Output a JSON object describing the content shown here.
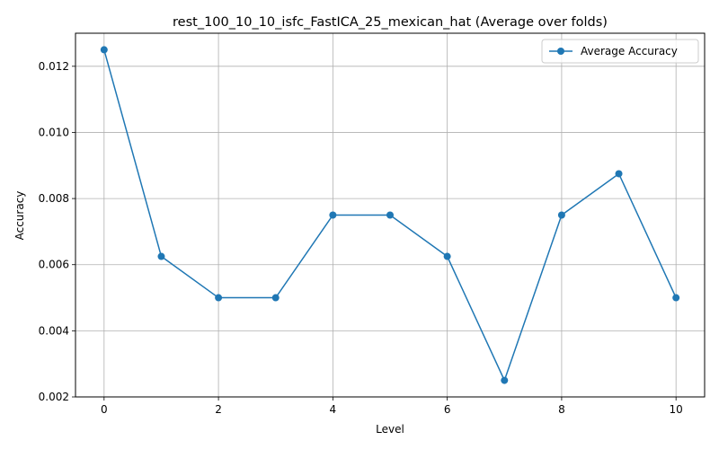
{
  "chart_data": {
    "type": "line",
    "title": "rest_100_10_10_isfc_FastICA_25_mexican_hat (Average over folds)",
    "xlabel": "Level",
    "ylabel": "Accuracy",
    "xlim": [
      -0.5,
      10.5
    ],
    "ylim": [
      0.002,
      0.013
    ],
    "xticks": [
      0,
      2,
      4,
      6,
      8,
      10
    ],
    "xtick_labels": [
      "0",
      "2",
      "4",
      "6",
      "8",
      "10"
    ],
    "yticks": [
      0.002,
      0.004,
      0.006,
      0.008,
      0.01,
      0.012
    ],
    "ytick_labels": [
      "0.002",
      "0.004",
      "0.006",
      "0.008",
      "0.010",
      "0.012"
    ],
    "grid": true,
    "legend_position": "top-right",
    "series": [
      {
        "name": "Average Accuracy",
        "color": "#1f77b4",
        "marker": "circle",
        "x": [
          0,
          1,
          2,
          3,
          4,
          5,
          6,
          7,
          8,
          9,
          10
        ],
        "values": [
          0.0125,
          0.00625,
          0.005,
          0.005,
          0.0075,
          0.0075,
          0.00625,
          0.0025,
          0.0075,
          0.00875,
          0.005
        ]
      }
    ]
  }
}
